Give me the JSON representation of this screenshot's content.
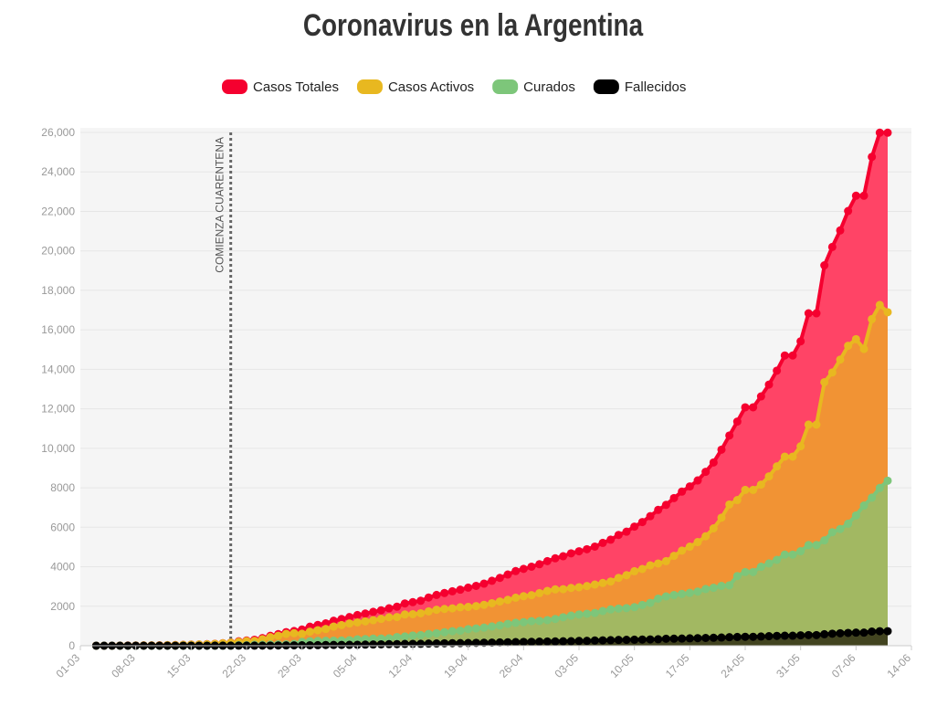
{
  "chart_data": {
    "type": "area",
    "title": "Coronavirus en la Argentina",
    "annotation": {
      "text": "COMIENZA CUARENTENA",
      "x": "20-03"
    },
    "xlim": [
      "01-03",
      "14-06"
    ],
    "xticks": [
      "01-03",
      "08-03",
      "15-03",
      "22-03",
      "29-03",
      "05-04",
      "12-04",
      "19-04",
      "26-04",
      "03-05",
      "10-05",
      "17-05",
      "24-05",
      "31-05",
      "07-06",
      "14-06"
    ],
    "ylim": [
      0,
      26000
    ],
    "yticks": [
      0,
      2000,
      4000,
      6000,
      8000,
      {
        "value": 10000,
        "label": "10,000"
      },
      {
        "value": 12000,
        "label": "12,000"
      },
      {
        "value": 14000,
        "label": "14,000"
      },
      {
        "value": 16000,
        "label": "16,000"
      },
      {
        "value": 18000,
        "label": "18,000"
      },
      {
        "value": 20000,
        "label": "20,000"
      },
      {
        "value": 22000,
        "label": "22,000"
      },
      {
        "value": 24000,
        "label": "24,000"
      },
      {
        "value": 26000,
        "label": "26,000"
      }
    ],
    "grid": true,
    "x": [
      "03-03",
      "04-03",
      "05-03",
      "06-03",
      "07-03",
      "08-03",
      "09-03",
      "10-03",
      "11-03",
      "12-03",
      "13-03",
      "14-03",
      "15-03",
      "16-03",
      "17-03",
      "18-03",
      "19-03",
      "20-03",
      "21-03",
      "22-03",
      "23-03",
      "24-03",
      "25-03",
      "26-03",
      "27-03",
      "28-03",
      "29-03",
      "30-03",
      "31-03",
      "01-04",
      "02-04",
      "03-04",
      "04-04",
      "05-04",
      "06-04",
      "07-04",
      "08-04",
      "09-04",
      "10-04",
      "11-04",
      "12-04",
      "13-04",
      "14-04",
      "15-04",
      "16-04",
      "17-04",
      "18-04",
      "19-04",
      "20-04",
      "21-04",
      "22-04",
      "23-04",
      "24-04",
      "25-04",
      "26-04",
      "27-04",
      "28-04",
      "29-04",
      "30-04",
      "01-05",
      "02-05",
      "03-05",
      "04-05",
      "05-05",
      "06-05",
      "07-05",
      "08-05",
      "09-05",
      "10-05",
      "11-05",
      "12-05",
      "13-05",
      "14-05",
      "15-05",
      "16-05",
      "17-05",
      "18-05",
      "19-05",
      "20-05",
      "21-05",
      "22-05",
      "23-05",
      "24-05",
      "25-05",
      "26-05",
      "27-05",
      "28-05",
      "29-05",
      "30-05",
      "31-05",
      "01-06",
      "02-06",
      "03-06",
      "04-06",
      "05-06",
      "06-06",
      "07-06",
      "08-06",
      "09-06",
      "10-06",
      "11-06"
    ],
    "series": [
      {
        "name": "Casos Totales",
        "color": "#f5002f",
        "area_color": "#ff4466",
        "values": [
          1,
          1,
          2,
          8,
          9,
          12,
          17,
          19,
          21,
          31,
          34,
          45,
          56,
          65,
          79,
          97,
          128,
          158,
          225,
          266,
          301,
          387,
          502,
          589,
          690,
          745,
          820,
          966,
          1054,
          1133,
          1265,
          1353,
          1451,
          1554,
          1628,
          1715,
          1795,
          1894,
          1975,
          2142,
          2208,
          2277,
          2443,
          2571,
          2669,
          2758,
          2839,
          2941,
          3031,
          3144,
          3288,
          3435,
          3607,
          3780,
          3892,
          4003,
          4127,
          4285,
          4428,
          4532,
          4681,
          4783,
          4887,
          5020,
          5208,
          5371,
          5611,
          5776,
          6034,
          6265,
          6563,
          6879,
          7134,
          7479,
          7805,
          8068,
          8371,
          8809,
          9283,
          9931,
          10649,
          11353,
          12076,
          12076,
          12628,
          13228,
          13933,
          14702,
          14702,
          15419,
          16838,
          16838,
          19268,
          20197,
          21037,
          22020,
          22794,
          22794,
          24761,
          25987,
          25987
        ]
      },
      {
        "name": "Casos Activos",
        "color": "#e8b820",
        "area_color": "#f09a30",
        "values": [
          1,
          1,
          2,
          8,
          8,
          11,
          16,
          18,
          20,
          29,
          31,
          42,
          53,
          62,
          74,
          91,
          122,
          152,
          194,
          235,
          245,
          329,
          431,
          505,
          601,
          635,
          605,
          714,
          787,
          849,
          970,
          1044,
          1127,
          1181,
          1234,
          1294,
          1358,
          1440,
          1453,
          1584,
          1598,
          1643,
          1739,
          1824,
          1862,
          1892,
          1947,
          1965,
          2008,
          2073,
          2153,
          2240,
          2324,
          2433,
          2508,
          2561,
          2664,
          2775,
          2856,
          2865,
          2927,
          2962,
          3022,
          3097,
          3178,
          3252,
          3437,
          3572,
          3775,
          3886,
          4074,
          4165,
          4284,
          4554,
          4817,
          5019,
          5248,
          5544,
          5945,
          6483,
          7154,
          7378,
          7892,
          7892,
          8162,
          8577,
          9084,
          9577,
          9577,
          10103,
          11200,
          11200,
          13349,
          13841,
          14492,
          15192,
          15530,
          15030,
          16544,
          17261,
          16893
        ]
      },
      {
        "name": "Curados",
        "color": "#7dc67a",
        "area_color": "#9bbb66",
        "values": [
          0,
          0,
          0,
          0,
          0,
          0,
          0,
          0,
          0,
          0,
          1,
          1,
          1,
          1,
          3,
          3,
          3,
          3,
          27,
          27,
          52,
          52,
          63,
          72,
          72,
          91,
          192,
          228,
          240,
          248,
          256,
          266,
          280,
          325,
          338,
          358,
          365,
          375,
          440,
          468,
          515,
          536,
          596,
          632,
          685,
          737,
          760,
          840,
          876,
          919,
          976,
          1030,
          1107,
          1162,
          1192,
          1245,
          1256,
          1296,
          1354,
          1442,
          1524,
          1581,
          1619,
          1659,
          1757,
          1837,
          1881,
          1904,
          1954,
          2065,
          2170,
          2385,
          2497,
          2569,
          2625,
          2676,
          2741,
          2872,
          2935,
          3032,
          3062,
          3530,
          3732,
          3732,
          3999,
          4167,
          4349,
          4617,
          4617,
          4788,
          5099,
          5099,
          5336,
          5748,
          5913,
          6180,
          6600,
          7100,
          7500,
          7991,
          8359
        ]
      },
      {
        "name": "Fallecidos",
        "color": "#000000",
        "area_color": "#3a3a1a",
        "values": [
          0,
          0,
          0,
          0,
          1,
          1,
          1,
          1,
          1,
          2,
          2,
          2,
          2,
          2,
          2,
          3,
          3,
          3,
          4,
          4,
          4,
          6,
          8,
          12,
          17,
          19,
          23,
          24,
          27,
          36,
          39,
          43,
          44,
          48,
          56,
          63,
          72,
          79,
          82,
          90,
          95,
          98,
          108,
          115,
          122,
          129,
          132,
          136,
          147,
          152,
          159,
          165,
          176,
          185,
          192,
          197,
          207,
          214,
          218,
          225,
          230,
          240,
          246,
          264,
          273,
          282,
          293,
          300,
          305,
          314,
          319,
          329,
          353,
          356,
          363,
          373,
          382,
          393,
          403,
          416,
          433,
          445,
          452,
          452,
          467,
          484,
          500,
          508,
          508,
          528,
          539,
          539,
          583,
          608,
          632,
          648,
          664,
          664,
          717,
          735,
          735
        ]
      }
    ]
  }
}
